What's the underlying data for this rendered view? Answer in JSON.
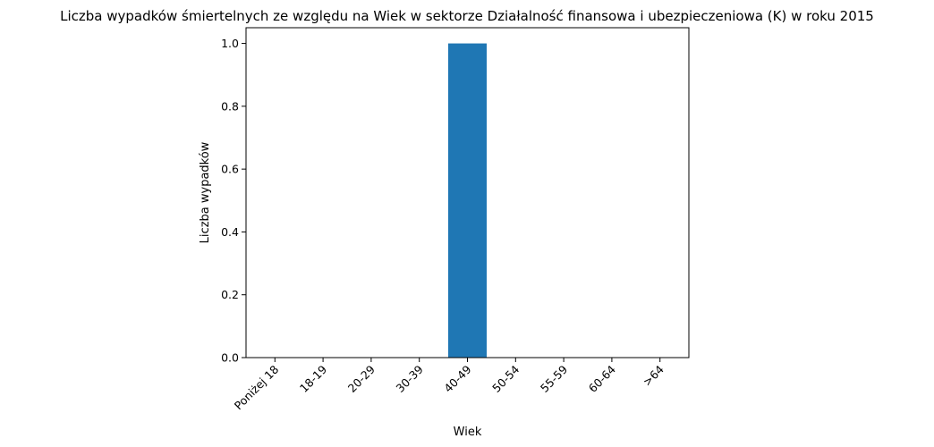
{
  "chart_data": {
    "type": "bar",
    "title": "Liczba wypadków śmiertelnych ze względu na Wiek w sektorze Działalność finansowa i ubezpieczeniowa (K)   w roku 2015",
    "xlabel": "Wiek",
    "ylabel": "Liczba wypadków",
    "categories": [
      "Poniżej 18",
      "18-19",
      "20-29",
      "30-39",
      "40-49",
      "50-54",
      "55-59",
      "60-64",
      ">64"
    ],
    "values": [
      0,
      0,
      0,
      0,
      1,
      0,
      0,
      0,
      0
    ],
    "ylim": [
      0,
      1.05
    ],
    "yticks": [
      0.0,
      0.2,
      0.4,
      0.6,
      0.8,
      1.0
    ],
    "ytick_labels": [
      "0.0",
      "0.2",
      "0.4",
      "0.6",
      "0.8",
      "1.0"
    ],
    "bar_color": "#1f77b4",
    "grid": false,
    "legend": "none"
  }
}
